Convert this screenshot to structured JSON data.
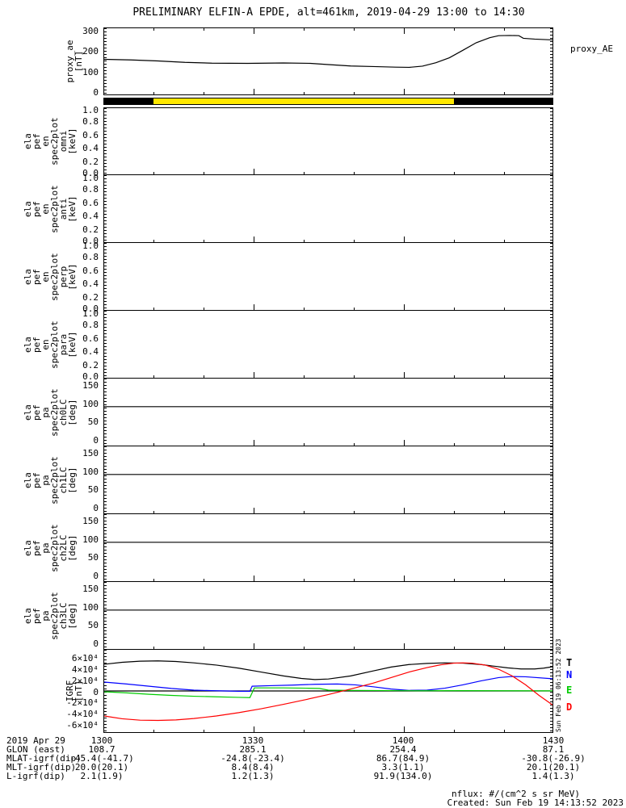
{
  "title": "PRELIMINARY ELFIN-A EPDE, alt=461km, 2019-04-29 13:00 to 14:30",
  "right_label_proxy": "proxy_AE",
  "vertical_stamp": "Sun Feb 19 06:13:52 2023",
  "legend": {
    "items": [
      {
        "label": "T",
        "color": "#000000"
      },
      {
        "label": "N",
        "color": "#0000ff"
      },
      {
        "label": "E",
        "color": "#00cc00"
      },
      {
        "label": "D",
        "color": "#ff0000"
      }
    ]
  },
  "colors": {
    "coverage_yellow": "#ffe800",
    "frame": "#000000"
  },
  "footer": {
    "rows": [
      {
        "label": "2019 Apr 29",
        "values": [
          "1300",
          "1330",
          "1400",
          "1430"
        ]
      },
      {
        "label": "GLON (east)",
        "values": [
          "108.7",
          "285.1",
          "254.4",
          "87.1"
        ]
      },
      {
        "label": "MLAT-igrf(dip)",
        "values": [
          "-45.4(-41.7)",
          "-24.8(-23.4)",
          "86.7(84.9)",
          "-30.8(-26.9)"
        ]
      },
      {
        "label": "MLT-igrf(dip)",
        "values": [
          "20.0(20.1)",
          "8.4(8.4)",
          "3.3(1.1)",
          "20.1(20.1)"
        ]
      },
      {
        "label": "L-igrf(dip)",
        "values": [
          "2.1(1.9)",
          "1.2(1.3)",
          "91.9(134.0)",
          "1.4(1.3)"
        ]
      }
    ],
    "nflux": "nflux: #/(cm^2 s sr MeV)",
    "created": "Created: Sun Feb 19 14:13:52 2023"
  },
  "chart_data": [
    {
      "type": "line",
      "name": "proxy_AE",
      "ylabel": "proxy_ae\n[nT]",
      "yticks": [
        "300",
        "200",
        "100",
        "0"
      ],
      "ylim": [
        -15,
        315
      ],
      "x_unit": "fraction of 13:00-14:30 UT",
      "series": [
        {
          "name": "proxy_AE",
          "color": "#000000",
          "x": [
            0,
            0.06,
            0.12,
            0.18,
            0.24,
            0.32,
            0.4,
            0.46,
            0.5,
            0.55,
            0.6,
            0.65,
            0.68,
            0.71,
            0.74,
            0.77,
            0.8,
            0.83,
            0.86,
            0.88,
            0.905,
            0.925,
            0.935,
            0.96,
            1.0
          ],
          "y": [
            160,
            157,
            152,
            145,
            141,
            140,
            142,
            140,
            134,
            127,
            124,
            121,
            120,
            126,
            143,
            168,
            205,
            243,
            268,
            278,
            279,
            278,
            265,
            261,
            257
          ]
        }
      ]
    },
    {
      "type": "band",
      "name": "coverage-bar",
      "segments": [
        {
          "from": 0,
          "to": 0.11,
          "color": "#000000"
        },
        {
          "from": 0.11,
          "to": 0.78,
          "color": "#ffe800"
        },
        {
          "from": 0.78,
          "to": 1.0,
          "color": "#000000"
        }
      ]
    },
    {
      "type": "spectrogram-empty",
      "name": "ela_pef_en_spec2plot_omni",
      "ylabel": "ela\npef\nen\nspec2plot\nomni\n[keV]",
      "yticks": [
        "1.0",
        "0.8",
        "0.6",
        "0.4",
        "0.2",
        "0.0"
      ],
      "ylim": [
        0,
        1
      ],
      "series": []
    },
    {
      "type": "spectrogram-empty",
      "name": "ela_pef_en_spec2plot_anti",
      "ylabel": "ela\npef\nen\nspec2plot\nanti\n[keV]",
      "yticks": [
        "1.0",
        "0.8",
        "0.6",
        "0.4",
        "0.2",
        "0.0"
      ],
      "ylim": [
        0,
        1
      ],
      "series": []
    },
    {
      "type": "spectrogram-empty",
      "name": "ela_pef_en_spec2plot_perp",
      "ylabel": "ela\npef\nen\nspec2plot\nperp\n[keV]",
      "yticks": [
        "1.0",
        "0.8",
        "0.6",
        "0.4",
        "0.2",
        "0.0"
      ],
      "ylim": [
        0,
        1
      ],
      "series": []
    },
    {
      "type": "spectrogram-empty",
      "name": "ela_pef_en_spec2plot_para",
      "ylabel": "ela\npef\nen\nspec2plot\npara\n[keV]",
      "yticks": [
        "1.0",
        "0.8",
        "0.6",
        "0.4",
        "0.2",
        "0.0"
      ],
      "ylim": [
        0,
        1
      ],
      "series": []
    },
    {
      "type": "line",
      "name": "ela_pef_pa_spec2plot_ch0LC",
      "ylabel": "ela\npef\npa\nspec2plot\nch0LC\n[deg]",
      "yticks": [
        "150",
        "100",
        "50",
        "0"
      ],
      "ylim": [
        -18,
        168
      ],
      "series": [
        {
          "name": "loss-cone-90deg",
          "color": "#000000",
          "x": [
            0,
            1
          ],
          "y": [
            90,
            90
          ]
        }
      ]
    },
    {
      "type": "line",
      "name": "ela_pef_pa_spec2plot_ch1LC",
      "ylabel": "ela\npef\npa\nspec2plot\nch1LC\n[deg]",
      "yticks": [
        "150",
        "100",
        "50",
        "0"
      ],
      "ylim": [
        -18,
        168
      ],
      "series": [
        {
          "name": "loss-cone-90deg",
          "color": "#000000",
          "x": [
            0,
            1
          ],
          "y": [
            90,
            90
          ]
        }
      ]
    },
    {
      "type": "line",
      "name": "ela_pef_pa_spec2plot_ch2LC",
      "ylabel": "ela\npef\npa\nspec2plot\nch2LC\n[deg]",
      "yticks": [
        "150",
        "100",
        "50",
        "0"
      ],
      "ylim": [
        -18,
        168
      ],
      "series": [
        {
          "name": "loss-cone-90deg",
          "color": "#000000",
          "x": [
            0,
            1
          ],
          "y": [
            90,
            90
          ]
        }
      ]
    },
    {
      "type": "line",
      "name": "ela_pef_pa_spec2plot_ch3LC",
      "ylabel": "ela\npef\npa\nspec2plot\nch3LC\n[deg]",
      "yticks": [
        "150",
        "100",
        "50",
        "0"
      ],
      "ylim": [
        -18,
        168
      ],
      "series": [
        {
          "name": "loss-cone-90deg",
          "color": "#000000",
          "x": [
            0,
            1
          ],
          "y": [
            90,
            90
          ]
        }
      ]
    },
    {
      "type": "line",
      "name": "IGRF",
      "ylabel": "IGRF\n[nT]",
      "yticks": [
        "6×10⁴",
        "4×10⁴",
        "2×10⁴",
        "0",
        "-2×10⁴",
        "-4×10⁴",
        "-6×10⁴"
      ],
      "ylim": [
        -74000,
        74000
      ],
      "xticks": [
        "1300",
        "1330",
        "1400",
        "1430"
      ],
      "series": [
        {
          "name": "zero-line",
          "color": "#000000",
          "x": [
            0,
            1
          ],
          "y": [
            0,
            0
          ]
        },
        {
          "name": "T",
          "color": "#000000",
          "x": [
            0,
            0.04,
            0.08,
            0.12,
            0.16,
            0.2,
            0.25,
            0.3,
            0.35,
            0.4,
            0.44,
            0.47,
            0.5,
            0.55,
            0.6,
            0.64,
            0.68,
            0.72,
            0.76,
            0.8,
            0.84,
            0.87,
            0.9,
            0.93,
            0.96,
            0.98,
            1.0
          ],
          "y": [
            48000,
            51500,
            53500,
            54000,
            53000,
            50500,
            46500,
            41000,
            34000,
            27000,
            22500,
            20500,
            21500,
            27000,
            36000,
            43000,
            47500,
            49500,
            50500,
            50000,
            47500,
            44500,
            41500,
            39500,
            39500,
            41000,
            43500
          ]
        },
        {
          "name": "N",
          "color": "#0000ff",
          "x": [
            0,
            0.05,
            0.1,
            0.15,
            0.2,
            0.24,
            0.27,
            0.3,
            0.325,
            0.33,
            0.37,
            0.42,
            0.47,
            0.52,
            0.56,
            0.6,
            0.64,
            0.68,
            0.72,
            0.76,
            0.8,
            0.84,
            0.88,
            0.91,
            0.94,
            1.0
          ],
          "y": [
            16000,
            12500,
            8500,
            4500,
            1500,
            500,
            0,
            -500,
            -500,
            8500,
            9500,
            10500,
            12000,
            12500,
            11000,
            7500,
            3500,
            1000,
            1500,
            5000,
            11000,
            18000,
            24000,
            26000,
            25500,
            22000
          ]
        },
        {
          "name": "E",
          "color": "#00cc00",
          "x": [
            0,
            0.05,
            0.1,
            0.15,
            0.2,
            0.25,
            0.3,
            0.325,
            0.335,
            0.4,
            0.45,
            0.48,
            0.5,
            0.55,
            0.6,
            0.7,
            0.8,
            0.9,
            1.0
          ],
          "y": [
            -1500,
            -3500,
            -6000,
            -8000,
            -9500,
            -10500,
            -11500,
            -12000,
            5500,
            5500,
            5000,
            4500,
            1500,
            1000,
            800,
            400,
            500,
            400,
            200
          ]
        },
        {
          "name": "D",
          "color": "#ff0000",
          "x": [
            0,
            0.04,
            0.08,
            0.12,
            0.16,
            0.2,
            0.25,
            0.3,
            0.35,
            0.4,
            0.45,
            0.5,
            0.55,
            0.6,
            0.64,
            0.68,
            0.72,
            0.75,
            0.78,
            0.8,
            0.82,
            0.85,
            0.88,
            0.91,
            0.94,
            0.97,
            1.0
          ],
          "y": [
            -45000,
            -50000,
            -52500,
            -53000,
            -52000,
            -49500,
            -45000,
            -39000,
            -32000,
            -24000,
            -15500,
            -6500,
            3500,
            14000,
            24000,
            34000,
            42000,
            47000,
            50000,
            50500,
            50000,
            46500,
            39000,
            27000,
            11000,
            -8000,
            -25000
          ]
        }
      ]
    }
  ]
}
